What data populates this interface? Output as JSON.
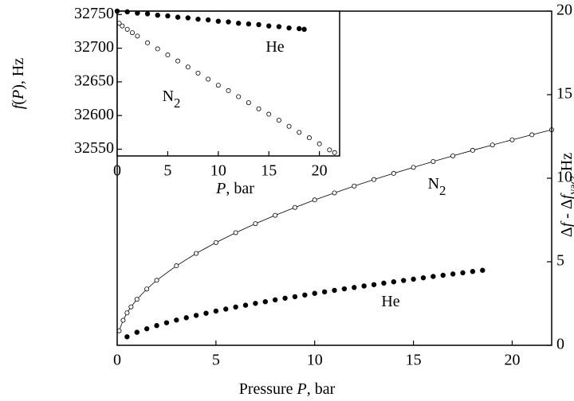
{
  "chart_data": [
    {
      "type": "scatter",
      "y_axis_side": "right",
      "x_label": [
        {
          "text": "Pressure "
        },
        {
          "text": "P",
          "style": "italic"
        },
        {
          "text": ",  bar"
        }
      ],
      "y_label": [
        {
          "text": "Δ"
        },
        {
          "text": "f",
          "style": "italic"
        },
        {
          "text": " - Δ"
        },
        {
          "text": "f",
          "style": "italic"
        },
        {
          "text": "vac",
          "style": "sub"
        },
        {
          "text": ",  Hz"
        }
      ],
      "xlim": [
        0,
        22
      ],
      "xticks": [
        0,
        5,
        10,
        15,
        20
      ],
      "ylim": [
        0,
        20
      ],
      "yticks": [
        0,
        5,
        10,
        15,
        20
      ],
      "annotations": [
        [
          {
            "text": "N"
          },
          {
            "text": "2",
            "style": "sub"
          }
        ],
        [
          {
            "text": "He"
          }
        ]
      ],
      "series": [
        {
          "marker": "open",
          "line": true,
          "color": "#000",
          "x": [
            0.1,
            0.3,
            0.5,
            0.7,
            1,
            1.5,
            2,
            3,
            4,
            5,
            6,
            7,
            8,
            9,
            10,
            11,
            12,
            13,
            14,
            15,
            16,
            17,
            18,
            19,
            20,
            21,
            22
          ],
          "values": [
            0.87,
            1.5,
            1.94,
            2.3,
            2.75,
            3.37,
            3.89,
            4.76,
            5.5,
            6.15,
            6.74,
            7.28,
            7.78,
            8.25,
            8.7,
            9.12,
            9.53,
            9.92,
            10.29,
            10.65,
            11.0,
            11.34,
            11.67,
            11.99,
            12.3,
            12.6,
            12.9
          ]
        },
        {
          "marker": "filled",
          "line": false,
          "color": "#000",
          "x": [
            0.5,
            1,
            1.5,
            2,
            2.5,
            3,
            3.5,
            4,
            4.5,
            5,
            5.5,
            6,
            6.5,
            7,
            7.5,
            8,
            8.5,
            9,
            9.5,
            10,
            10.5,
            11,
            11.5,
            12,
            12.5,
            13,
            13.5,
            14,
            14.5,
            15,
            15.5,
            16,
            16.5,
            17,
            17.5,
            18,
            18.5
          ],
          "values": [
            0.51,
            0.78,
            0.99,
            1.18,
            1.35,
            1.51,
            1.65,
            1.79,
            1.92,
            2.05,
            2.17,
            2.29,
            2.4,
            2.51,
            2.61,
            2.72,
            2.82,
            2.91,
            3.01,
            3.11,
            3.2,
            3.29,
            3.38,
            3.46,
            3.55,
            3.63,
            3.72,
            3.8,
            3.88,
            3.96,
            4.04,
            4.12,
            4.19,
            4.27,
            4.34,
            4.42,
            4.49
          ]
        }
      ]
    },
    {
      "type": "scatter",
      "y_axis_side": "left",
      "x_label": [
        {
          "text": "P",
          "style": "italic"
        },
        {
          "text": ", bar"
        }
      ],
      "y_label": [
        {
          "text": "f",
          "style": "italic"
        },
        {
          "text": "("
        },
        {
          "text": "P",
          "style": "italic"
        },
        {
          "text": "),  Hz"
        }
      ],
      "xlim": [
        0,
        22
      ],
      "xticks": [
        0,
        5,
        10,
        15,
        20
      ],
      "ylim": [
        32540,
        32755
      ],
      "yticks": [
        32550,
        32600,
        32650,
        32700,
        32750
      ],
      "annotations": [
        [
          {
            "text": "He"
          }
        ],
        [
          {
            "text": "N"
          },
          {
            "text": "2",
            "style": "sub"
          }
        ]
      ],
      "series": [
        {
          "marker": "filled",
          "line": false,
          "color": "#000",
          "x": [
            0,
            1,
            2,
            3,
            4,
            5,
            6,
            7,
            8,
            9,
            10,
            11,
            12,
            13,
            14,
            15,
            16,
            17,
            18,
            18.5
          ],
          "values": [
            32755,
            32754,
            32752,
            32751,
            32749,
            32748,
            32746,
            32745,
            32743,
            32742,
            32740,
            32739,
            32737,
            32736,
            32735,
            32733,
            32732,
            32730,
            32729,
            32728
          ]
        },
        {
          "marker": "open",
          "line": false,
          "color": "#000",
          "x": [
            0.2,
            0.5,
            1,
            1.5,
            2,
            3,
            4,
            5,
            6,
            7,
            8,
            9,
            10,
            11,
            12,
            13,
            14,
            15,
            16,
            17,
            18,
            19,
            20,
            21,
            21.5
          ],
          "values": [
            32737,
            32733,
            32728,
            32723,
            32718,
            32708,
            32699,
            32690,
            32681,
            32672,
            32663,
            32654,
            32645,
            32637,
            32628,
            32619,
            32610,
            32602,
            32593,
            32584,
            32575,
            32567,
            32558,
            32549,
            32545
          ]
        }
      ]
    }
  ]
}
